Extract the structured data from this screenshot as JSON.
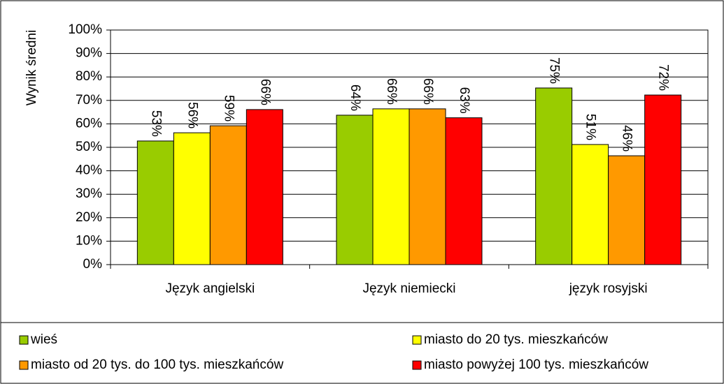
{
  "chart_data": {
    "type": "bar",
    "categories": [
      "Język angielski",
      "Język niemiecki",
      "język rosyjski"
    ],
    "y_label": "Wynik średni",
    "series": [
      {
        "name": "wieś",
        "color": "#99cc00",
        "values": [
          52.7,
          63.7,
          75.3
        ],
        "value_labels": [
          "53%",
          "64%",
          "75%"
        ]
      },
      {
        "name": "miasto do 20 tys. mieszkańców",
        "color": "#ffff00",
        "values": [
          56.2,
          66.4,
          51.2
        ],
        "value_labels": [
          "56%",
          "66%",
          "51%"
        ]
      },
      {
        "name": "miasto od 20 tys. do 100 tys. mieszkańców",
        "color": "#ff9900",
        "values": [
          59.2,
          66.4,
          46.4
        ],
        "value_labels": [
          "59%",
          "66%",
          "46%"
        ]
      },
      {
        "name": "miasto powyżej 100 tys. mieszkańców",
        "color": "#ff0000",
        "values": [
          66.1,
          62.6,
          72.3
        ],
        "value_labels": [
          "66%",
          "63%",
          "72%"
        ]
      }
    ],
    "ylim": [
      0,
      100
    ],
    "yticks": [
      {
        "value": 0,
        "label": "0%"
      },
      {
        "value": 10,
        "label": "10%"
      },
      {
        "value": 20,
        "label": "20%"
      },
      {
        "value": 30,
        "label": "30%"
      },
      {
        "value": 40,
        "label": "40%"
      },
      {
        "value": 50,
        "label": "50%"
      },
      {
        "value": 60,
        "label": "60%"
      },
      {
        "value": 70,
        "label": "70%"
      },
      {
        "value": 80,
        "label": "80%"
      },
      {
        "value": 90,
        "label": "90%"
      },
      {
        "value": 100,
        "label": "100%"
      }
    ],
    "grid": true,
    "legend": "bottom"
  }
}
